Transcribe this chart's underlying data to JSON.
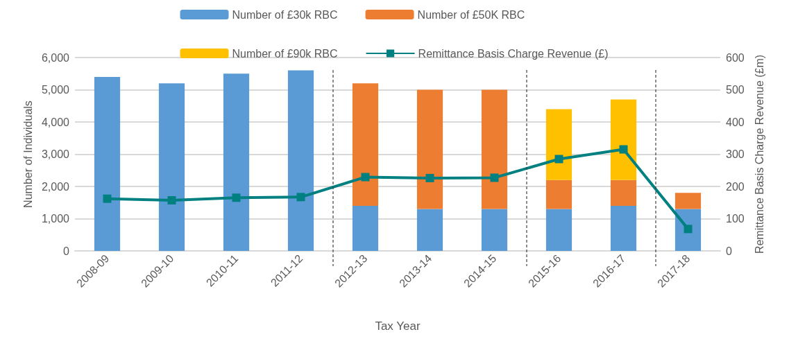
{
  "chart_data": {
    "type": "bar",
    "stacked": true,
    "xlabel": "Tax Year",
    "ylabel": "Number of Individuals",
    "y2label": "Remittance Basis Charge Revenue (£m)",
    "categories": [
      "2008-09",
      "2009-10",
      "2010-11",
      "2011-12",
      "2012-13",
      "2013-14",
      "2014-15",
      "2015-16",
      "2016-17",
      "2017-18"
    ],
    "series": [
      {
        "name": "Number of £30k RBC",
        "color": "#5b9bd5",
        "values": [
          5400,
          5200,
          5500,
          5600,
          1400,
          1300,
          1300,
          1300,
          1400,
          1300
        ]
      },
      {
        "name": "Number of £50K RBC",
        "color": "#ed7d31",
        "values": [
          null,
          null,
          null,
          null,
          3800,
          3700,
          3700,
          900,
          800,
          500
        ]
      },
      {
        "name": "Number of £90k RBC",
        "color": "#ffc000",
        "values": [
          null,
          null,
          null,
          null,
          null,
          null,
          null,
          2200,
          2500,
          null
        ]
      },
      {
        "name": "Remittance Basis Charge Revenue (£)",
        "type": "line",
        "axis": "y2",
        "color": "#008080",
        "marker": "square",
        "values": [
          162,
          157,
          165,
          167,
          229,
          226,
          227,
          285,
          315,
          68
        ]
      }
    ],
    "ylim": [
      0,
      6000
    ],
    "yticks": [
      {
        "value": 0,
        "label": "0"
      },
      {
        "value": 1000,
        "label": "1,000"
      },
      {
        "value": 2000,
        "label": "2,000"
      },
      {
        "value": 3000,
        "label": "3,000"
      },
      {
        "value": 4000,
        "label": "4,000"
      },
      {
        "value": 5000,
        "label": "5,000"
      },
      {
        "value": 6000,
        "label": "6,000"
      }
    ],
    "y2lim": [
      0,
      600
    ],
    "y2ticks": [
      0,
      100,
      200,
      300,
      400,
      500,
      600
    ],
    "ref_lines": [
      {
        "axis": "x",
        "value": "2012-13",
        "color": "#404040",
        "line_style": "dashed"
      },
      {
        "axis": "x",
        "value": "2015-16",
        "color": "#404040",
        "line_style": "dashed"
      },
      {
        "axis": "x",
        "value": "2017-18",
        "color": "#404040",
        "line_style": "dashed"
      }
    ],
    "grid": "y",
    "legend": "top"
  }
}
